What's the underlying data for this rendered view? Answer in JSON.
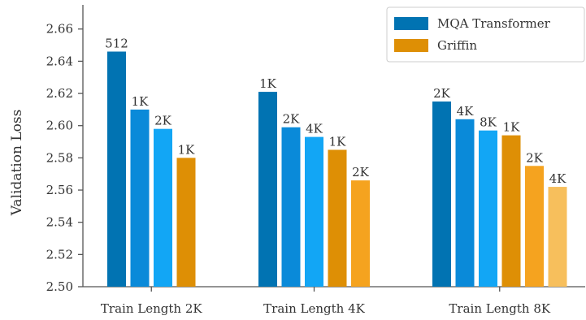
{
  "chart_data": {
    "type": "bar",
    "title": "",
    "ylabel": "Validation Loss",
    "xlabel": "",
    "ylim": [
      2.5,
      2.675
    ],
    "yticks": [
      2.5,
      2.52,
      2.54,
      2.56,
      2.58,
      2.6,
      2.62,
      2.64,
      2.66
    ],
    "grid": false,
    "legend_placement": "top-right",
    "legend": [
      {
        "name": "MQA Transformer",
        "color": "#0173b2"
      },
      {
        "name": "Griffin",
        "color": "#de8f05"
      }
    ],
    "groups": [
      {
        "label": "Train Length 2K",
        "bars": [
          {
            "model": "MQA Transformer",
            "eval_length": "512",
            "value": 2.646,
            "color": "#0173b2"
          },
          {
            "model": "MQA Transformer",
            "eval_length": "1K",
            "value": 2.61,
            "color": "#0a8ad9"
          },
          {
            "model": "MQA Transformer",
            "eval_length": "2K",
            "value": 2.598,
            "color": "#12a6f5"
          },
          {
            "model": "Griffin",
            "eval_length": "1K",
            "value": 2.58,
            "color": "#de8f05"
          }
        ]
      },
      {
        "label": "Train Length 4K",
        "bars": [
          {
            "model": "MQA Transformer",
            "eval_length": "1K",
            "value": 2.621,
            "color": "#0173b2"
          },
          {
            "model": "MQA Transformer",
            "eval_length": "2K",
            "value": 2.599,
            "color": "#0a8ad9"
          },
          {
            "model": "MQA Transformer",
            "eval_length": "4K",
            "value": 2.593,
            "color": "#12a6f5"
          },
          {
            "model": "Griffin",
            "eval_length": "1K",
            "value": 2.585,
            "color": "#de8f05"
          },
          {
            "model": "Griffin",
            "eval_length": "2K",
            "value": 2.566,
            "color": "#f5a31f"
          }
        ]
      },
      {
        "label": "Train Length 8K",
        "bars": [
          {
            "model": "MQA Transformer",
            "eval_length": "2K",
            "value": 2.615,
            "color": "#0173b2"
          },
          {
            "model": "MQA Transformer",
            "eval_length": "4K",
            "value": 2.604,
            "color": "#0a8ad9"
          },
          {
            "model": "MQA Transformer",
            "eval_length": "8K",
            "value": 2.597,
            "color": "#12a6f5"
          },
          {
            "model": "Griffin",
            "eval_length": "1K",
            "value": 2.594,
            "color": "#de8f05"
          },
          {
            "model": "Griffin",
            "eval_length": "2K",
            "value": 2.575,
            "color": "#f5a31f"
          },
          {
            "model": "Griffin",
            "eval_length": "4K",
            "value": 2.562,
            "color": "#f7bf5c"
          }
        ]
      }
    ]
  }
}
